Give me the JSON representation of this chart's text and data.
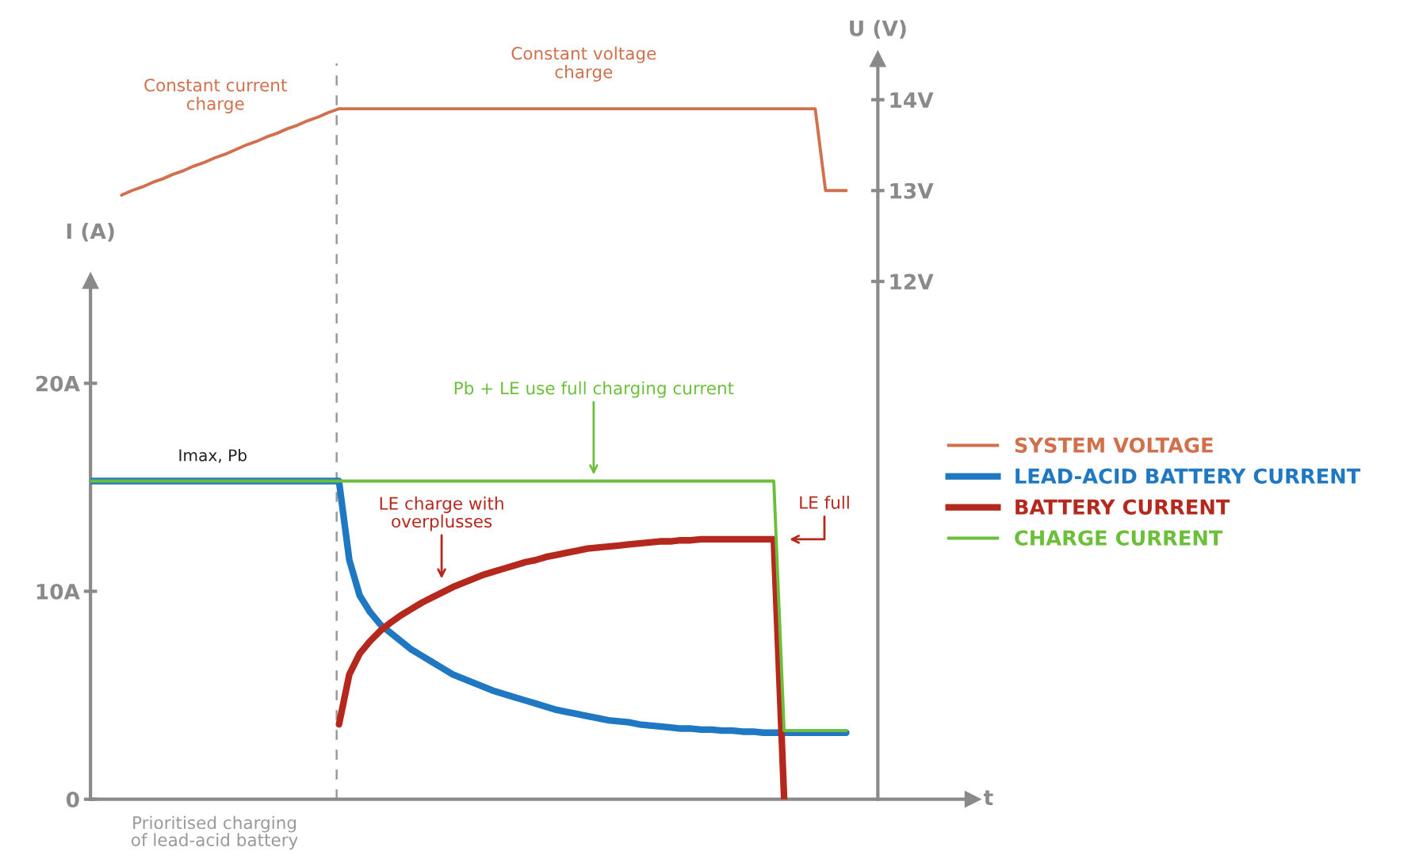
{
  "chart_data": {
    "type": "line",
    "categories": [
      null,
      null,
      null,
      null,
      null,
      null,
      null,
      null,
      null,
      null,
      null,
      null,
      null,
      null,
      null,
      null,
      null,
      null,
      null,
      null,
      null,
      null,
      null,
      null,
      null,
      null,
      null,
      null,
      null,
      null,
      null,
      null,
      null,
      null,
      null,
      null,
      null,
      null,
      null,
      null,
      null,
      null,
      null,
      null,
      null,
      null,
      null,
      null,
      null,
      null,
      null,
      null,
      null,
      null,
      null,
      null,
      null,
      null,
      null,
      null,
      null,
      null,
      null,
      null,
      null,
      null,
      null,
      null,
      null,
      null,
      null,
      null,
      null,
      null
    ],
    "ylim": [
      0,
      35.6
    ],
    "yticks": [
      0,
      {
        "value": 10,
        "label": "10A"
      },
      {
        "value": 20,
        "label": "20A"
      }
    ],
    "ylabel": "I (A)",
    "y2label": "U (V)",
    "xlabel": "t",
    "y2lim": [
      6.3,
      14.45
    ],
    "y2ticks": [
      {
        "value": 12,
        "label": "12V"
      },
      {
        "value": 13,
        "label": "13V"
      },
      {
        "value": 14,
        "label": "14V"
      }
    ],
    "grid": false,
    "legend": "right",
    "marker": "none",
    "series": [
      {
        "name": "SYSTEM VOLTAGE",
        "color": "#d0704c",
        "axis": "y2",
        "values": [
          null,
          null,
          null,
          12.95,
          13.0,
          13.04,
          13.09,
          13.13,
          13.18,
          13.22,
          13.27,
          13.31,
          13.36,
          13.4,
          13.45,
          13.5,
          13.54,
          13.59,
          13.63,
          13.68,
          13.72,
          13.77,
          13.81,
          13.86,
          13.9,
          13.9,
          13.9,
          13.9,
          13.9,
          13.9,
          13.9,
          13.9,
          13.9,
          13.9,
          13.9,
          13.9,
          13.9,
          13.9,
          13.9,
          13.9,
          13.9,
          13.9,
          13.9,
          13.9,
          13.9,
          13.9,
          13.9,
          13.9,
          13.9,
          13.9,
          13.9,
          13.9,
          13.9,
          13.9,
          13.9,
          13.9,
          13.9,
          13.9,
          13.9,
          13.9,
          13.9,
          13.9,
          13.9,
          13.9,
          13.9,
          13.9,
          13.9,
          13.9,
          13.9,
          13.9,
          13.9,
          13.0,
          13.0,
          13.0
        ]
      },
      {
        "name": "LEAD-ACID BATTERY CURRENT",
        "color": "#1f78c1",
        "values": [
          15.3,
          15.3,
          15.3,
          15.3,
          15.3,
          15.3,
          15.3,
          15.3,
          15.3,
          15.3,
          15.3,
          15.3,
          15.3,
          15.3,
          15.3,
          15.3,
          15.3,
          15.3,
          15.3,
          15.3,
          15.3,
          15.3,
          15.3,
          15.3,
          15.3,
          11.5,
          9.8,
          9.0,
          8.4,
          8.0,
          7.6,
          7.2,
          6.9,
          6.6,
          6.3,
          6.0,
          5.8,
          5.6,
          5.4,
          5.2,
          5.05,
          4.9,
          4.75,
          4.6,
          4.45,
          4.3,
          4.2,
          4.1,
          4.0,
          3.9,
          3.8,
          3.75,
          3.7,
          3.6,
          3.55,
          3.5,
          3.45,
          3.4,
          3.4,
          3.35,
          3.35,
          3.3,
          3.3,
          3.25,
          3.25,
          3.2,
          3.2,
          3.2,
          3.2,
          3.2,
          3.2,
          3.2,
          3.2,
          3.2
        ]
      },
      {
        "name": "BATTERY CURRENT",
        "color": "#b5281e",
        "values": [
          null,
          null,
          null,
          null,
          null,
          null,
          null,
          null,
          null,
          null,
          null,
          null,
          null,
          null,
          null,
          null,
          null,
          null,
          null,
          null,
          null,
          null,
          null,
          null,
          3.6,
          6.0,
          7.0,
          7.6,
          8.1,
          8.5,
          8.85,
          9.15,
          9.45,
          9.7,
          9.95,
          10.2,
          10.4,
          10.6,
          10.8,
          10.95,
          11.1,
          11.25,
          11.4,
          11.5,
          11.65,
          11.75,
          11.85,
          11.95,
          12.05,
          12.1,
          12.15,
          12.2,
          12.25,
          12.3,
          12.35,
          12.4,
          12.4,
          12.45,
          12.45,
          12.5,
          12.5,
          12.5,
          12.5,
          12.5,
          12.5,
          12.5,
          12.5,
          0,
          null,
          null,
          null,
          null,
          null,
          null
        ]
      },
      {
        "name": "CHARGE CURRENT",
        "color": "#6cbf3a",
        "values": [
          15.3,
          15.3,
          15.3,
          15.3,
          15.3,
          15.3,
          15.3,
          15.3,
          15.3,
          15.3,
          15.3,
          15.3,
          15.3,
          15.3,
          15.3,
          15.3,
          15.3,
          15.3,
          15.3,
          15.3,
          15.3,
          15.3,
          15.3,
          15.3,
          15.3,
          15.3,
          15.3,
          15.3,
          15.3,
          15.3,
          15.3,
          15.3,
          15.3,
          15.3,
          15.3,
          15.3,
          15.3,
          15.3,
          15.3,
          15.3,
          15.3,
          15.3,
          15.3,
          15.3,
          15.3,
          15.3,
          15.3,
          15.3,
          15.3,
          15.3,
          15.3,
          15.3,
          15.3,
          15.3,
          15.3,
          15.3,
          15.3,
          15.3,
          15.3,
          15.3,
          15.3,
          15.3,
          15.3,
          15.3,
          15.3,
          15.3,
          15.3,
          3.3,
          3.3,
          3.3,
          3.3,
          3.3,
          3.3,
          3.3
        ]
      }
    ],
    "annotations": [
      "Constant current\ncharge",
      "Constant voltage\ncharge",
      "Imax, Pb",
      "Pb + LE use full charging current",
      "LE charge with\noverplusses",
      "LE full",
      "Prioritised charging\nof lead-acid battery"
    ]
  }
}
